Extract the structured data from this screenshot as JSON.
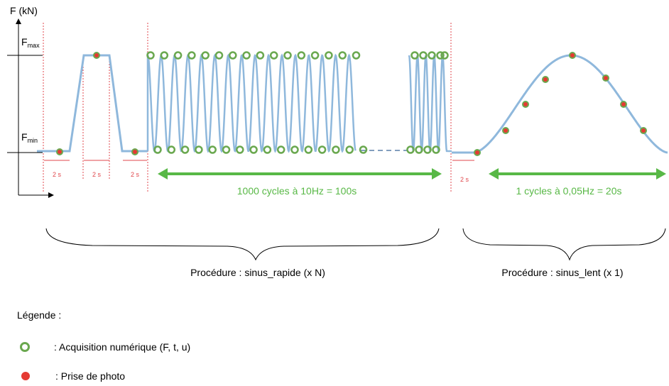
{
  "axis": {
    "y_label": "F (kN)",
    "f_max_main": "F",
    "f_max_sub": "max",
    "f_min_main": "F",
    "f_min_sub": "min"
  },
  "durations": {
    "hold_1": "2 s",
    "hold_2": "2 s",
    "hold_3": "2 s",
    "hold_4": "2 s"
  },
  "arrows": {
    "fast": "1000 cycles à 10Hz = 100s",
    "slow": "1 cycles à 0,05Hz = 20s"
  },
  "procedures": {
    "fast": "Procédure : sinus_rapide (x N)",
    "slow": "Procédure : sinus_lent (x 1)"
  },
  "legend": {
    "title": "Légende :",
    "acquisition": ": Acquisition numérique (F, t, u)",
    "photo": ": Prise de photo"
  },
  "colors": {
    "signal": "#8fb8dc",
    "acquisition": "#6aa84f",
    "photo": "#e53a33",
    "arrow": "#58b846",
    "separator": "#e0474c"
  }
}
